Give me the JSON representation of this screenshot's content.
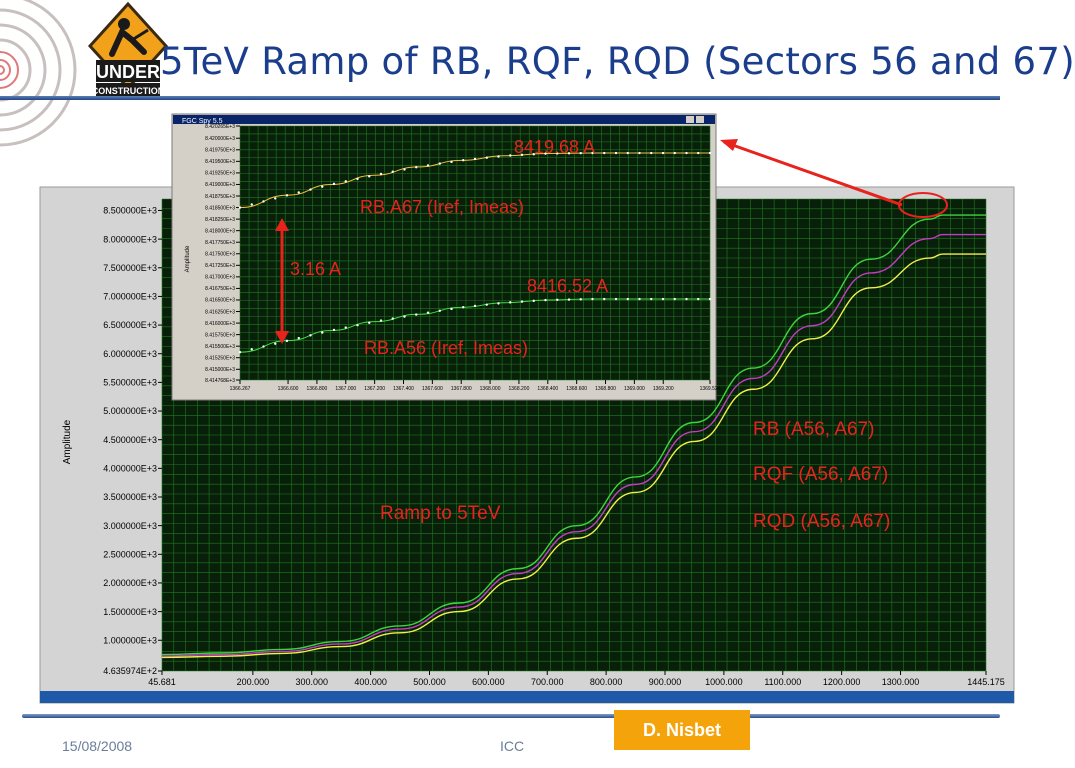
{
  "title": "5TeV Ramp of RB, RQF, RQD (Sectors 56 and 67)",
  "logo": {
    "text_line1": "UNDER",
    "text_line2": "CONSTRUCTION",
    "icon": "under-construction-sign-icon"
  },
  "footer": {
    "date": "15/08/2008",
    "center": "ICC",
    "author": "D. Nisbet"
  },
  "colors": {
    "title": "#1b3e8c",
    "plot_bg": "#08200a",
    "grid": "#1f7a1f",
    "annotation": "#e8221c",
    "author_box": "#f5a30b",
    "rb": "#3fd43f",
    "rqf": "#c23cc2",
    "rqd": "#f0f04a"
  },
  "chart_data": [
    {
      "type": "line",
      "ylabel": "Amplitude",
      "xlim": [
        45.681,
        1445.175
      ],
      "ylim": [
        463.5974,
        8700
      ],
      "y_ticks": [
        "4.635974E+2",
        "1.000000E+3",
        "1.500000E+3",
        "2.000000E+3",
        "2.500000E+3",
        "3.000000E+3",
        "3.500000E+3",
        "4.000000E+3",
        "4.500000E+3",
        "5.000000E+3",
        "5.500000E+3",
        "6.000000E+3",
        "6.500000E+3",
        "7.000000E+3",
        "7.500000E+3",
        "8.000000E+3",
        "8.500000E+3"
      ],
      "x_ticks": [
        "45.681",
        "200.000",
        "300.000",
        "400.000",
        "500.000",
        "600.000",
        "700.000",
        "800.000",
        "900.000",
        "1000.000",
        "1100.000",
        "1200.000",
        "1300.000",
        "1445.175"
      ],
      "series": [
        {
          "color": "#3fd43f",
          "x": [
            45.681,
            150,
            250,
            350,
            450,
            550,
            650,
            750,
            850,
            950,
            1050,
            1150,
            1250,
            1350,
            1372,
            1445.175
          ],
          "y": [
            750,
            780,
            840,
            980,
            1250,
            1650,
            2250,
            3000,
            3850,
            4800,
            5750,
            6700,
            7650,
            8350,
            8420,
            8420
          ]
        },
        {
          "color": "#c23cc2",
          "x": [
            45.681,
            150,
            250,
            350,
            450,
            550,
            650,
            750,
            850,
            950,
            1050,
            1150,
            1250,
            1350,
            1372,
            1445.175
          ],
          "y": [
            725,
            750,
            805,
            935,
            1195,
            1580,
            2165,
            2895,
            3720,
            4640,
            5570,
            6490,
            7410,
            8010,
            8080,
            8080
          ]
        },
        {
          "color": "#f0f04a",
          "x": [
            45.681,
            150,
            250,
            350,
            450,
            550,
            650,
            750,
            850,
            950,
            1050,
            1150,
            1250,
            1350,
            1372,
            1445.175
          ],
          "y": [
            700,
            720,
            770,
            890,
            1130,
            1500,
            2070,
            2780,
            3580,
            4470,
            5380,
            6260,
            7150,
            7670,
            7740,
            7740
          ]
        }
      ],
      "annotations": [
        "RB (A56, A67)",
        "RQF (A56, A67)",
        "RQD (A56, A67)",
        "Ramp to 5TeV"
      ]
    },
    {
      "type": "line",
      "window_title": "FGC Spy 5.5",
      "ylabel": "Amplitude",
      "xlim": [
        1366.267,
        1369.524
      ],
      "ylim": [
        8414.768,
        8420.265
      ],
      "y_ticks": [
        "8.414768E+3",
        "8.415000E+3",
        "8.415250E+3",
        "8.415500E+3",
        "8.415750E+3",
        "8.416000E+3",
        "8.416250E+3",
        "8.416500E+3",
        "8.416750E+3",
        "8.417000E+3",
        "8.417250E+3",
        "8.417500E+3",
        "8.417750E+3",
        "8.418000E+3",
        "8.418250E+3",
        "8.418500E+3",
        "8.418750E+3",
        "8.419000E+3",
        "8.419250E+3",
        "8.419500E+3",
        "8.419750E+3",
        "8.420000E+3",
        "8.420265E+3"
      ],
      "x_ticks": [
        "1366.267",
        "1366.600",
        "1366.800",
        "1367.000",
        "1367.200",
        "1367.400",
        "1367.600",
        "1367.800",
        "1368.000",
        "1368.200",
        "1368.400",
        "1368.600",
        "1368.800",
        "1369.000",
        "1369.200",
        "1369.524"
      ],
      "series": [
        {
          "name": "RB.A67 (Iref, Imeas)",
          "color": "#f0c040",
          "x": [
            1366.267,
            1366.6,
            1366.9,
            1367.2,
            1367.5,
            1367.8,
            1368.1,
            1368.4,
            1368.7,
            1369.0,
            1369.524
          ],
          "y": [
            8418.5,
            8418.77,
            8419.0,
            8419.2,
            8419.38,
            8419.52,
            8419.62,
            8419.67,
            8419.68,
            8419.68,
            8419.68
          ]
        },
        {
          "name": "RB.A56 (Iref, Imeas)",
          "color": "#40e040",
          "x": [
            1366.267,
            1366.6,
            1366.9,
            1367.2,
            1367.5,
            1367.8,
            1368.1,
            1368.4,
            1368.7,
            1369.0,
            1369.524
          ],
          "y": [
            8415.37,
            8415.62,
            8415.84,
            8416.03,
            8416.19,
            8416.34,
            8416.44,
            8416.5,
            8416.52,
            8416.52,
            8416.52
          ]
        }
      ],
      "annotations": [
        "8419.68 A",
        "8416.52 A",
        "3.16 A",
        "RB.A67 (Iref, Imeas)",
        "RB.A56 (Iref, Imeas)"
      ]
    }
  ]
}
